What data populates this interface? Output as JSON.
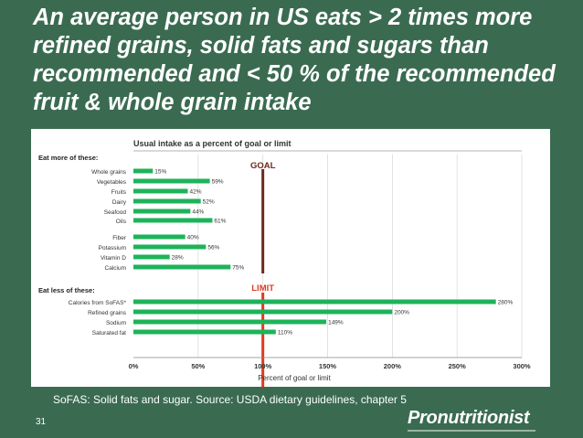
{
  "slide": {
    "title": "An average person in US eats > 2 times more refined grains, solid fats and sugars than recommended and < 50 % of the recommended fruit & whole grain intake",
    "footnote": "SoFAS: Solid fats and sugar. Source: USDA dietary guidelines, chapter 5",
    "slide_number": "31",
    "logo": "Pronutritionist"
  },
  "colors": {
    "background": "#3a6b51",
    "bar": "#1eb35a",
    "goal_line": "#6b2a1a",
    "limit_line": "#e23a1c"
  },
  "chart_data": {
    "type": "bar",
    "orientation": "horizontal",
    "title": "Usual intake as a percent of goal or limit",
    "xlabel": "Percent of goal or limit",
    "xlim": [
      0,
      300
    ],
    "xticks": [
      "0%",
      "50%",
      "100%",
      "150%",
      "200%",
      "250%",
      "300%"
    ],
    "groups": [
      {
        "heading": "Eat more of these:",
        "reference_label": "GOAL",
        "categories": [
          "Whole grains",
          "Vegetables",
          "Fruits",
          "Dairy",
          "Seafood",
          "Oils",
          "Fiber",
          "Potassium",
          "Vitamin D",
          "Calcium"
        ],
        "values": [
          15,
          59,
          42,
          52,
          44,
          61,
          40,
          56,
          28,
          75
        ],
        "labels": [
          "15%",
          "59%",
          "42%",
          "52%",
          "44%",
          "61%",
          "40%",
          "56%",
          "28%",
          "75%"
        ]
      },
      {
        "heading": "Eat less of these:",
        "reference_label": "LIMIT",
        "categories": [
          "Calories from SoFAS*",
          "Refined grains",
          "Sodium",
          "Saturated fat"
        ],
        "values": [
          280,
          200,
          149,
          110
        ],
        "labels": [
          "280%",
          "200%",
          "149%",
          "110%"
        ]
      }
    ]
  }
}
